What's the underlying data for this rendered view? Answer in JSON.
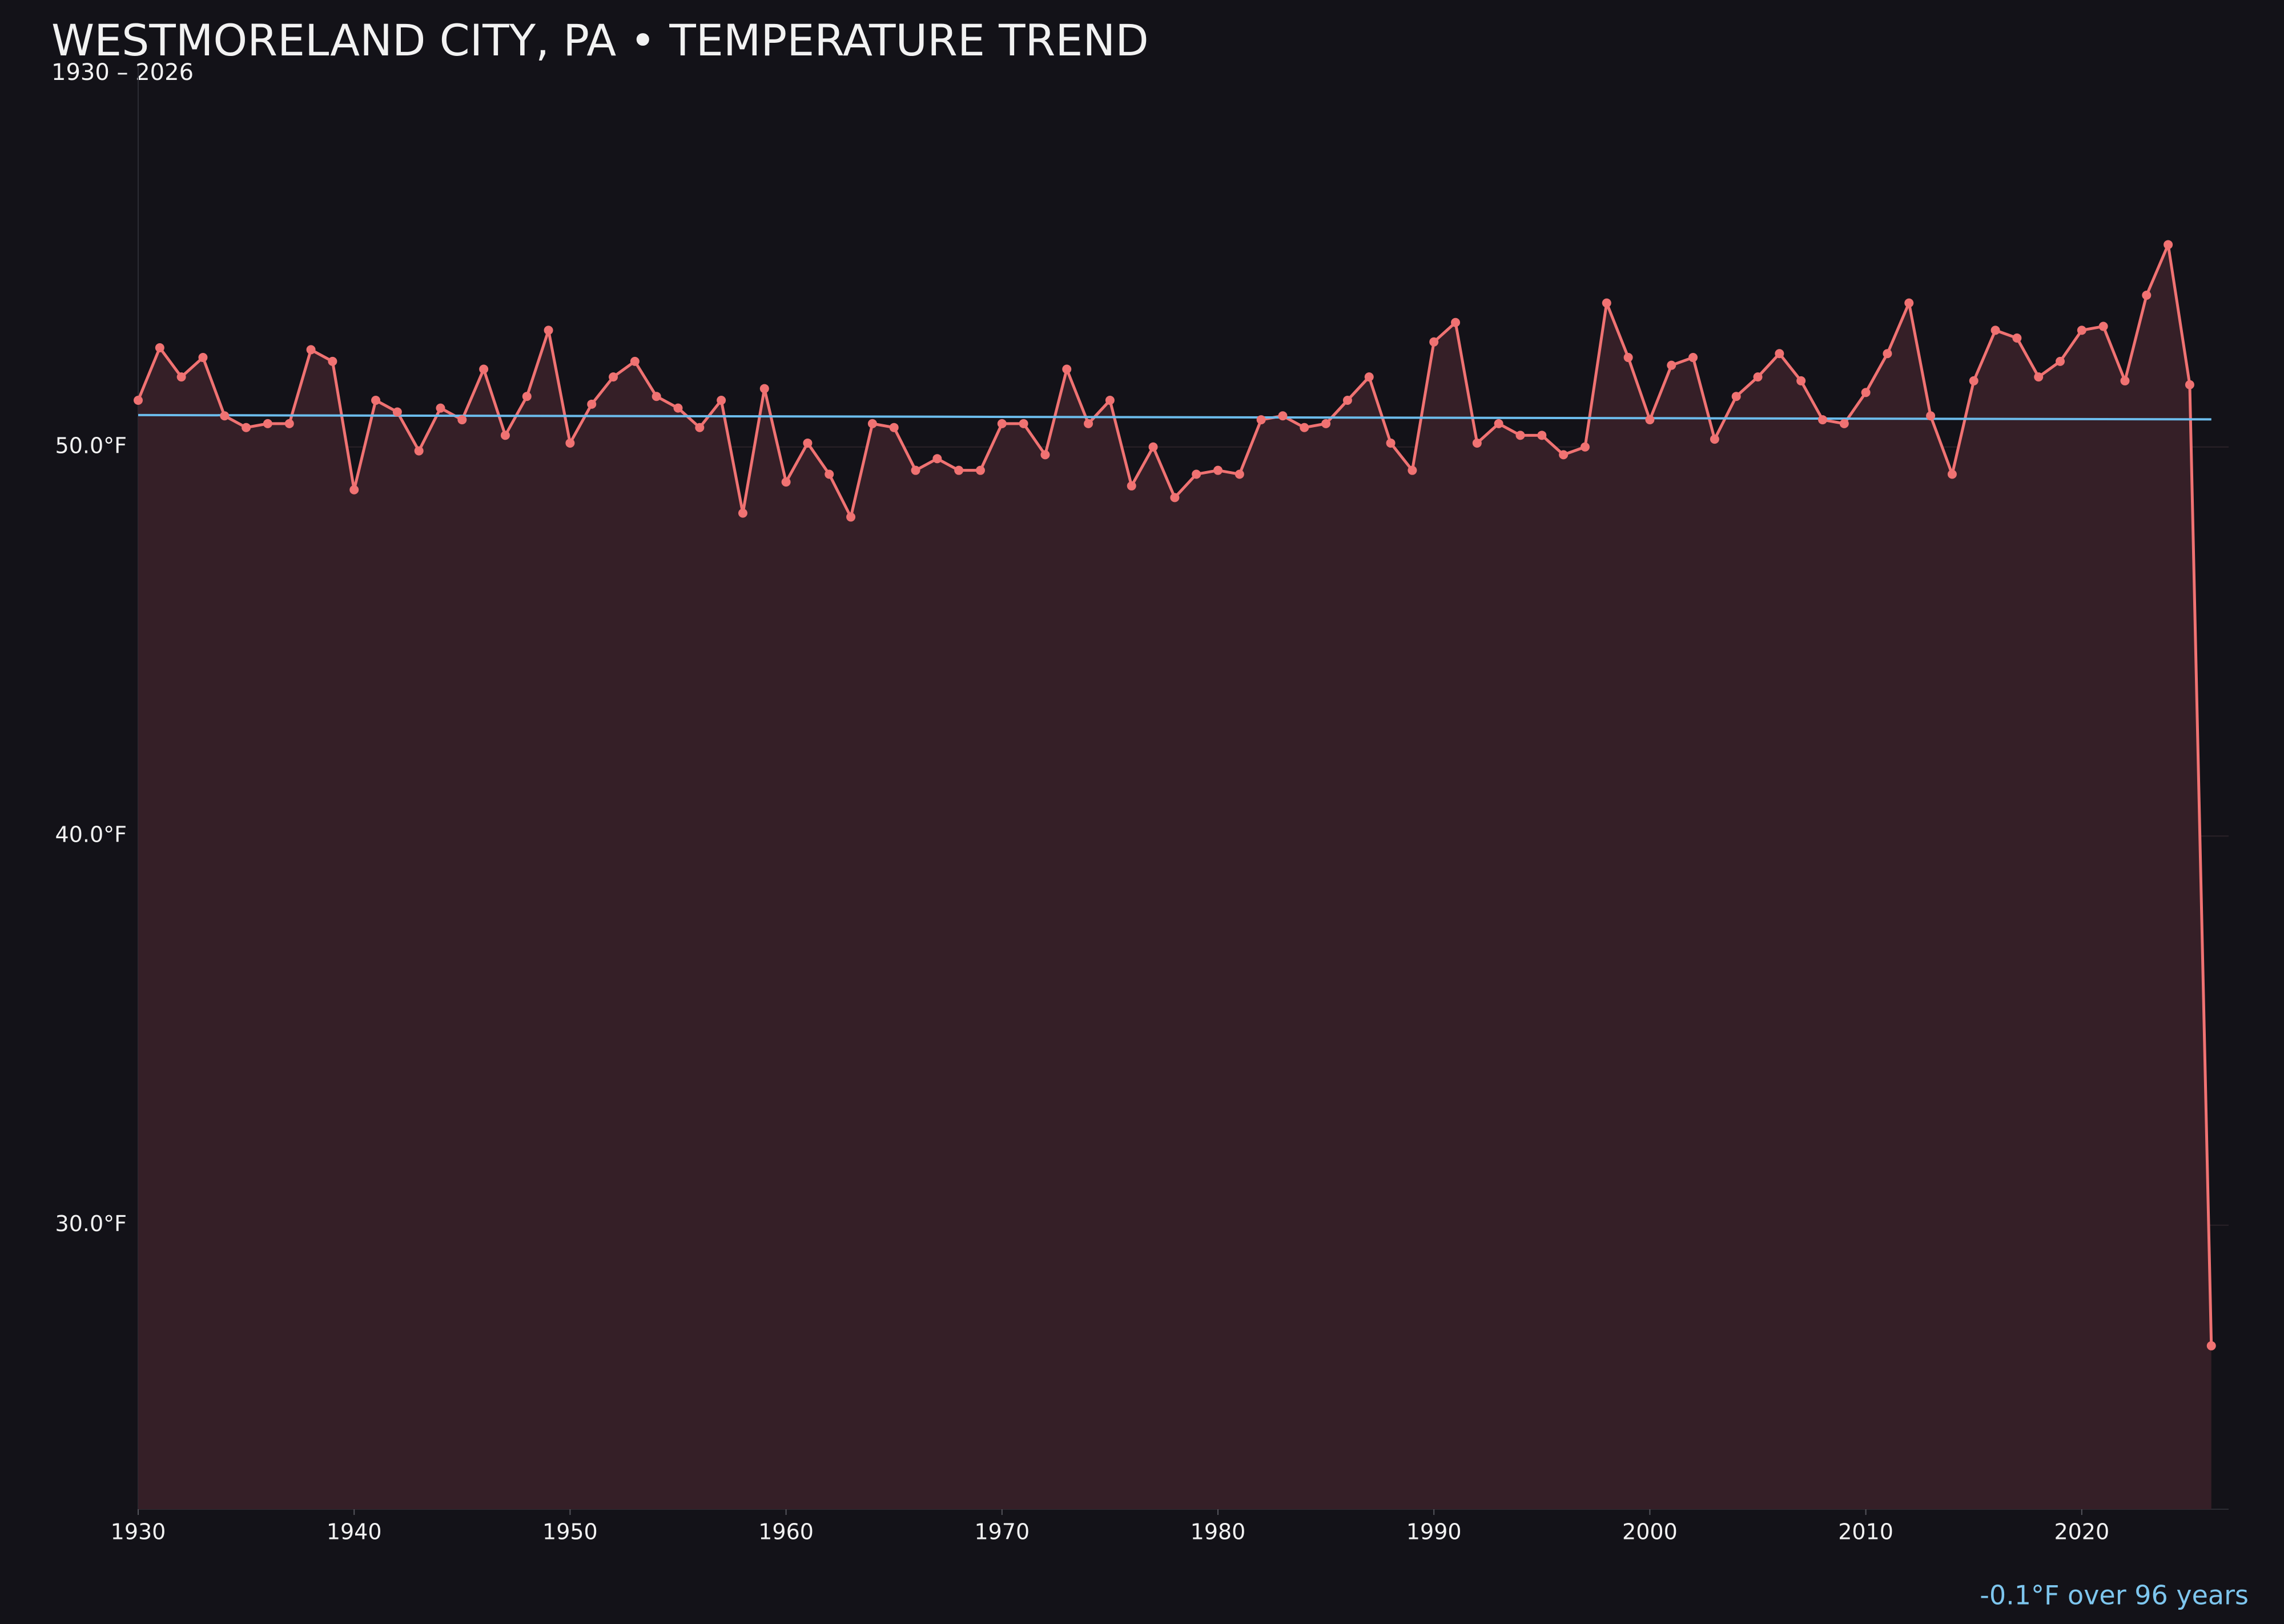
{
  "chart_data": {
    "type": "line",
    "title": "WESTMORELAND CITY, PA • TEMPERATURE TREND",
    "subtitle": "1930 – 2026",
    "annotation": "-0.1°F over 96 years",
    "x": [
      1930,
      1931,
      1932,
      1933,
      1934,
      1935,
      1936,
      1937,
      1938,
      1939,
      1940,
      1941,
      1942,
      1943,
      1944,
      1945,
      1946,
      1947,
      1948,
      1949,
      1950,
      1951,
      1952,
      1953,
      1954,
      1955,
      1956,
      1957,
      1958,
      1959,
      1960,
      1961,
      1962,
      1963,
      1964,
      1965,
      1966,
      1967,
      1968,
      1969,
      1970,
      1971,
      1972,
      1973,
      1974,
      1975,
      1976,
      1977,
      1978,
      1979,
      1980,
      1981,
      1982,
      1983,
      1984,
      1985,
      1986,
      1987,
      1988,
      1989,
      1990,
      1991,
      1992,
      1993,
      1994,
      1995,
      1996,
      1997,
      1998,
      1999,
      2000,
      2001,
      2002,
      2003,
      2004,
      2005,
      2006,
      2007,
      2008,
      2009,
      2010,
      2011,
      2012,
      2013,
      2014,
      2015,
      2016,
      2017,
      2018,
      2019,
      2020,
      2021,
      2022,
      2023,
      2024,
      2025,
      2026
    ],
    "series": [
      {
        "color": "#f07272",
        "values": [
          51.2,
          52.55,
          51.8,
          52.3,
          50.8,
          50.5,
          50.6,
          50.6,
          52.5,
          52.2,
          48.9,
          51.2,
          50.9,
          49.9,
          51.0,
          50.7,
          52.0,
          50.3,
          51.3,
          53.0,
          50.1,
          51.1,
          51.8,
          52.2,
          51.3,
          51.0,
          50.5,
          51.2,
          48.3,
          51.5,
          49.1,
          50.1,
          49.3,
          48.2,
          50.6,
          50.5,
          49.4,
          49.7,
          49.4,
          49.4,
          50.6,
          50.6,
          49.8,
          52.0,
          50.6,
          51.2,
          49.0,
          50.0,
          48.7,
          49.3,
          49.4,
          49.3,
          50.7,
          50.8,
          50.5,
          50.6,
          51.2,
          51.8,
          50.1,
          49.4,
          52.7,
          53.2,
          50.1,
          50.6,
          50.3,
          50.3,
          49.8,
          50.0,
          53.7,
          52.3,
          50.7,
          52.1,
          52.3,
          50.2,
          51.3,
          51.8,
          52.4,
          51.7,
          50.7,
          50.6,
          51.4,
          52.4,
          53.7,
          50.8,
          49.3,
          51.7,
          53.0,
          52.8,
          51.8,
          52.2,
          53.0,
          53.1,
          51.7,
          53.9,
          55.2,
          51.6,
          26.9
        ]
      }
    ],
    "trend": {
      "color": "#6cbcec",
      "x": [
        1930,
        2026
      ],
      "values": [
        50.82,
        50.71
      ]
    },
    "fill_color": "#351f27",
    "xlim": [
      1930,
      2026.8
    ],
    "ylim": [
      22.7,
      59.8
    ],
    "xticks": [
      1930,
      1940,
      1950,
      1960,
      1970,
      1980,
      1990,
      2000,
      2010,
      2020
    ],
    "yticks": [
      {
        "value": 30,
        "label": "30.0°F"
      },
      {
        "value": 40,
        "label": "40.0°F"
      },
      {
        "value": 50,
        "label": "50.0°F"
      }
    ],
    "grid": true
  }
}
